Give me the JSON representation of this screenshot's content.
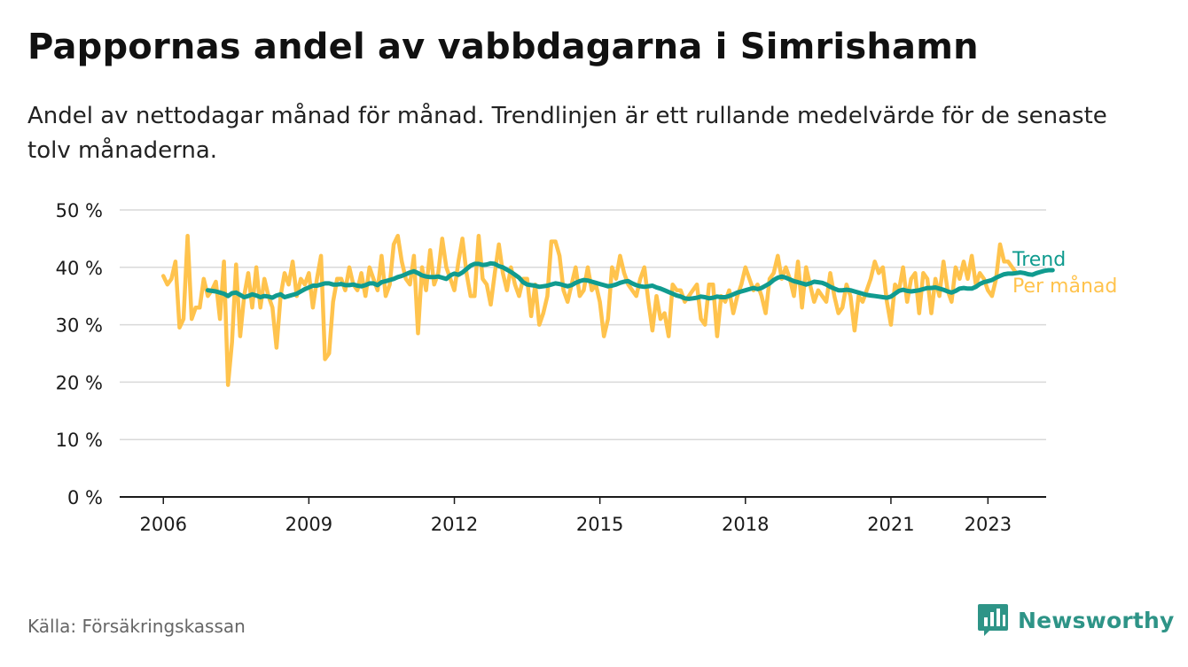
{
  "title": "Pappornas andel av vabbdagarna i Simrishamn",
  "subtitle": "Andel av nettodagar månad för månad. Trendlinjen är ett rullande medelvärde för de senaste tolv månaderna.",
  "source": "Källa: Försäkringskassan",
  "brand": {
    "name": "Newsworthy",
    "icon": "newsworthy-logo-icon",
    "color": "#2e9487"
  },
  "colors": {
    "trend": "#109b8f",
    "monthly": "#ffc34d",
    "grid": "#d9d9d9",
    "axis": "#1a1a1a"
  },
  "chart_data": {
    "type": "line",
    "xlabel": "",
    "ylabel": "",
    "ylim": [
      0,
      50
    ],
    "yticks": [
      0,
      10,
      20,
      30,
      40,
      50
    ],
    "ytick_labels": [
      "0 %",
      "10 %",
      "20 %",
      "30 %",
      "40 %",
      "50 %"
    ],
    "xlim": [
      2005.1,
      2024.2
    ],
    "xticks": [
      2006,
      2009,
      2012,
      2015,
      2018,
      2021,
      2023
    ],
    "xtick_labels": [
      "2006",
      "2009",
      "2012",
      "2015",
      "2018",
      "2021",
      "2023"
    ],
    "grid": true,
    "legend": "right-end labels",
    "series": [
      {
        "name": "Per månad",
        "start": "2006-01",
        "step": "month",
        "values": [
          38.5,
          37,
          38,
          41,
          29.5,
          31,
          45.5,
          31,
          33,
          33,
          38,
          35,
          36,
          37.5,
          31,
          41,
          19.5,
          27,
          40.5,
          28,
          35,
          39,
          33,
          40,
          33,
          38,
          35,
          33,
          26,
          35,
          39,
          37,
          41,
          35,
          38,
          37,
          39,
          33,
          38,
          42,
          24,
          25,
          34,
          38,
          38,
          36,
          40,
          37,
          36,
          39,
          35,
          40,
          38,
          36,
          42,
          35,
          37,
          44,
          45.5,
          41,
          38,
          37,
          42,
          28.5,
          40,
          36,
          43,
          37,
          39,
          45,
          40,
          38,
          36,
          41,
          45,
          39,
          35,
          35,
          45.5,
          38,
          37,
          33.5,
          39,
          44,
          39,
          36,
          40,
          37,
          35,
          38,
          38,
          31.5,
          37,
          30,
          32,
          35,
          44.5,
          44.5,
          42,
          36,
          34,
          37,
          40,
          35,
          36,
          40,
          36,
          37,
          34,
          28,
          31,
          40,
          38,
          42,
          39,
          37,
          36,
          35,
          38,
          40,
          34,
          29,
          35,
          31,
          32,
          28,
          37,
          36,
          36,
          34,
          35,
          36,
          37,
          31,
          30,
          37,
          37,
          28,
          35,
          34,
          36,
          32,
          35,
          37,
          40,
          38,
          36,
          37,
          35,
          32,
          38,
          39,
          42,
          38,
          40,
          38,
          35,
          41,
          33,
          40,
          37,
          34,
          36,
          35,
          34,
          39,
          35,
          32,
          33,
          37,
          35,
          29,
          35,
          34,
          36,
          38,
          41,
          39,
          40,
          34,
          30,
          37,
          36,
          40,
          34,
          38,
          39,
          32,
          39,
          38,
          32,
          38,
          35,
          41,
          36,
          34,
          40,
          38,
          41,
          38,
          42,
          37,
          39,
          38,
          36,
          35,
          38,
          44,
          41,
          41,
          40,
          39
        ]
      },
      {
        "name": "Trend",
        "start": "2006-12",
        "step": "month",
        "values": [
          36,
          35.9,
          35.8,
          35.6,
          35.4,
          35,
          35.5,
          35.6,
          35.2,
          34.8,
          35,
          35.3,
          35.1,
          34.8,
          35,
          34.9,
          34.7,
          35.1,
          35.3,
          34.8,
          35,
          35.2,
          35.4,
          35.8,
          36.2,
          36.5,
          36.8,
          36.8,
          37,
          37.2,
          37.2,
          37,
          37,
          37.1,
          36.9,
          36.9,
          37,
          36.8,
          36.7,
          36.9,
          37.2,
          37.2,
          36.9,
          37.4,
          37.6,
          37.8,
          38,
          38.3,
          38.5,
          38.8,
          39.1,
          39.3,
          39,
          38.6,
          38.4,
          38.3,
          38.3,
          38.4,
          38.2,
          38,
          38.6,
          38.9,
          38.7,
          39.1,
          39.7,
          40.3,
          40.6,
          40.6,
          40.4,
          40.5,
          40.7,
          40.6,
          40.2,
          40,
          39.6,
          39.2,
          38.7,
          38.2,
          37.4,
          37,
          36.9,
          36.8,
          36.6,
          36.7,
          36.8,
          37,
          37.2,
          37.1,
          36.9,
          36.7,
          36.9,
          37.3,
          37.6,
          37.8,
          37.7,
          37.5,
          37.3,
          37.1,
          36.9,
          36.7,
          36.8,
          37,
          37.3,
          37.5,
          37.6,
          37.2,
          36.9,
          36.7,
          36.6,
          36.7,
          36.8,
          36.5,
          36.3,
          36,
          35.7,
          35.4,
          35.1,
          34.9,
          34.6,
          34.5,
          34.6,
          34.7,
          34.9,
          34.8,
          34.6,
          34.7,
          34.9,
          34.8,
          34.8,
          35,
          35.3,
          35.6,
          35.8,
          36,
          36.2,
          36.4,
          36.2,
          36.4,
          36.8,
          37.2,
          37.8,
          38.2,
          38.4,
          38.2,
          37.9,
          37.6,
          37.4,
          37.2,
          37,
          37.2,
          37.5,
          37.4,
          37.3,
          37,
          36.6,
          36.3,
          36,
          36,
          36.1,
          36,
          35.8,
          35.6,
          35.4,
          35.2,
          35.1,
          35,
          34.9,
          34.8,
          34.7,
          34.9,
          35.4,
          35.9,
          36.1,
          35.9,
          35.8,
          35.9,
          36,
          36.2,
          36.4,
          36.4,
          36.5,
          36.3,
          36.1,
          35.8,
          35.6,
          35.9,
          36.3,
          36.4,
          36.3,
          36.3,
          36.6,
          37.1,
          37.4,
          37.6,
          37.8,
          38.2,
          38.5,
          38.8,
          38.9,
          38.9,
          39,
          39.1,
          39,
          38.8,
          38.7,
          39,
          39.2,
          39.4,
          39.5,
          39.5
        ]
      }
    ]
  }
}
